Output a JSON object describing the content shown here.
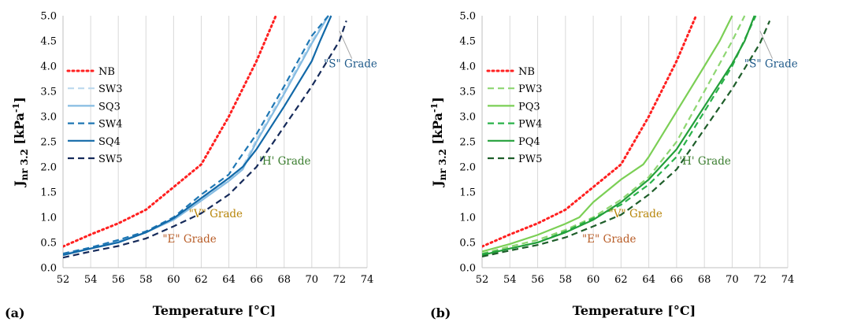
{
  "chart_data": [
    {
      "type": "line",
      "panel_label": "(a)",
      "xlabel": "Temperature [°C]",
      "ylabel_main": "J",
      "ylabel_sub": "nr 3.2",
      "ylabel_unit": " [kPa",
      "ylabel_sup": "-1",
      "ylabel_end": "]",
      "xlim": [
        52,
        74
      ],
      "ylim": [
        0,
        5
      ],
      "xticks": [
        "52",
        "54",
        "56",
        "58",
        "60",
        "62",
        "64",
        "66",
        "68",
        "70",
        "72",
        "74"
      ],
      "yticks": [
        "0.0",
        "0.5",
        "1.0",
        "1.5",
        "2.0",
        "2.5",
        "3.0",
        "3.5",
        "4.0",
        "4.5",
        "5.0"
      ],
      "grid": "vertical",
      "legend_position": "left",
      "series": [
        {
          "name": "NB",
          "color": "#ff2020",
          "dash": "dotted",
          "x": [
            52,
            54,
            56,
            58,
            60,
            62,
            64,
            66,
            67.4
          ],
          "y": [
            0.42,
            0.66,
            0.88,
            1.15,
            1.6,
            2.05,
            3.0,
            4.1,
            5.0
          ]
        },
        {
          "name": "SW3",
          "color": "#bcd9ee",
          "dash": "dashed",
          "x": [
            52,
            54,
            56,
            58,
            60,
            62,
            64,
            65,
            66,
            68,
            70,
            71.2
          ],
          "y": [
            0.28,
            0.4,
            0.55,
            0.72,
            0.95,
            1.35,
            1.75,
            2.0,
            2.55,
            3.5,
            4.5,
            5.0
          ]
        },
        {
          "name": "SQ3",
          "color": "#86bce2",
          "dash": "solid",
          "x": [
            52,
            54,
            56,
            58,
            60,
            62,
            64,
            65,
            66,
            68,
            70,
            71.2
          ],
          "y": [
            0.27,
            0.38,
            0.52,
            0.7,
            0.95,
            1.33,
            1.72,
            1.95,
            2.5,
            3.45,
            4.45,
            5.0
          ]
        },
        {
          "name": "SW4",
          "color": "#1f77b4",
          "dash": "dashed",
          "x": [
            52,
            54,
            56,
            58,
            60,
            62,
            64,
            64.6,
            66,
            68,
            70,
            71.2
          ],
          "y": [
            0.28,
            0.4,
            0.55,
            0.72,
            1.0,
            1.45,
            1.85,
            2.1,
            2.65,
            3.6,
            4.6,
            5.0
          ]
        },
        {
          "name": "SQ4",
          "color": "#1269a8",
          "dash": "solid",
          "x": [
            52,
            54,
            56,
            58,
            60,
            62,
            64,
            65,
            66,
            68,
            70,
            70.6,
            71.4
          ],
          "y": [
            0.25,
            0.38,
            0.5,
            0.7,
            0.98,
            1.38,
            1.78,
            2.0,
            2.35,
            3.2,
            4.1,
            4.5,
            5.0
          ]
        },
        {
          "name": "SW5",
          "color": "#152a5a",
          "dash": "dashed",
          "x": [
            52,
            54,
            56,
            58,
            60,
            62,
            64,
            66,
            68,
            70,
            72,
            72.5
          ],
          "y": [
            0.2,
            0.32,
            0.43,
            0.58,
            0.82,
            1.08,
            1.45,
            2.0,
            2.8,
            3.6,
            4.5,
            4.9
          ]
        }
      ],
      "annotations": [
        {
          "text": "\"S\" Grade",
          "color": "#1f5a8a",
          "x": 72.8,
          "y": 3.98
        },
        {
          "text": "'H' Grade",
          "color": "#3a7d2e",
          "x": 66.2,
          "y": 2.05
        },
        {
          "text": "\"V\" Grade",
          "color": "#b8860b",
          "x": 61.1,
          "y": 1.0
        },
        {
          "text": "\"E\" Grade",
          "color": "#b85c26",
          "x": 59.2,
          "y": 0.5
        }
      ]
    },
    {
      "type": "line",
      "panel_label": "(b)",
      "xlabel": "Temperature [°C]",
      "ylabel_main": "J",
      "ylabel_sub": "nr 3.2",
      "ylabel_unit": " [kPa",
      "ylabel_sup": "-1",
      "ylabel_end": "]",
      "xlim": [
        52,
        74
      ],
      "ylim": [
        0,
        5
      ],
      "xticks": [
        "52",
        "54",
        "56",
        "58",
        "60",
        "62",
        "64",
        "66",
        "68",
        "70",
        "72",
        "74"
      ],
      "yticks": [
        "0.0",
        "0.5",
        "1.0",
        "1.5",
        "2.0",
        "2.5",
        "3.0",
        "3.5",
        "4.0",
        "4.5",
        "5.0"
      ],
      "grid": "vertical",
      "legend_position": "left",
      "series": [
        {
          "name": "NB",
          "color": "#ff2020",
          "dash": "dotted",
          "x": [
            52,
            54,
            56,
            58,
            60,
            62,
            64,
            66,
            67.4
          ],
          "y": [
            0.42,
            0.66,
            0.88,
            1.15,
            1.6,
            2.05,
            3.0,
            4.1,
            5.0
          ]
        },
        {
          "name": "PW3",
          "color": "#8ed672",
          "dash": "dashed",
          "x": [
            52,
            54,
            56,
            58,
            60,
            62,
            64,
            66,
            68,
            70,
            70.9
          ],
          "y": [
            0.28,
            0.42,
            0.55,
            0.75,
            1.0,
            1.35,
            1.8,
            2.5,
            3.5,
            4.5,
            5.0
          ]
        },
        {
          "name": "PQ3",
          "color": "#7bcf55",
          "dash": "solid",
          "x": [
            52,
            54,
            56,
            58,
            59,
            60,
            62,
            63.6,
            64,
            66,
            68,
            69.1,
            70
          ],
          "y": [
            0.32,
            0.47,
            0.65,
            0.87,
            1.0,
            1.3,
            1.75,
            2.05,
            2.2,
            3.1,
            4.0,
            4.5,
            5.0
          ]
        },
        {
          "name": "PW4",
          "color": "#2ab24a",
          "dash": "dashed",
          "x": [
            52,
            54,
            56,
            58,
            60,
            62,
            64,
            66,
            68,
            70,
            71.7
          ],
          "y": [
            0.27,
            0.38,
            0.5,
            0.72,
            0.98,
            1.25,
            1.65,
            2.2,
            3.1,
            4.0,
            5.0
          ]
        },
        {
          "name": "PQ4",
          "color": "#23a03a",
          "dash": "solid",
          "x": [
            52,
            54,
            56,
            58,
            60,
            62,
            64,
            65,
            66,
            68,
            70,
            70.9,
            71.6
          ],
          "y": [
            0.25,
            0.38,
            0.5,
            0.7,
            0.95,
            1.3,
            1.75,
            2.05,
            2.35,
            3.2,
            4.05,
            4.5,
            5.0
          ]
        },
        {
          "name": "PW5",
          "color": "#1e5e2a",
          "dash": "dashed",
          "x": [
            52,
            54,
            56,
            58,
            60,
            62,
            64,
            66,
            68,
            70,
            72,
            72.7
          ],
          "y": [
            0.22,
            0.34,
            0.45,
            0.6,
            0.82,
            1.05,
            1.45,
            1.95,
            2.75,
            3.55,
            4.45,
            4.9
          ]
        }
      ],
      "annotations": [
        {
          "text": "\"S\" Grade",
          "color": "#1f5a8a",
          "x": 72.8,
          "y": 3.98
        },
        {
          "text": "'H' Grade",
          "color": "#3a7d2e",
          "x": 66.2,
          "y": 2.05
        },
        {
          "text": "\"V\" Grade",
          "color": "#b8860b",
          "x": 61.1,
          "y": 1.0
        },
        {
          "text": "\"E\" Grade",
          "color": "#b85c26",
          "x": 59.2,
          "y": 0.5
        }
      ]
    }
  ]
}
